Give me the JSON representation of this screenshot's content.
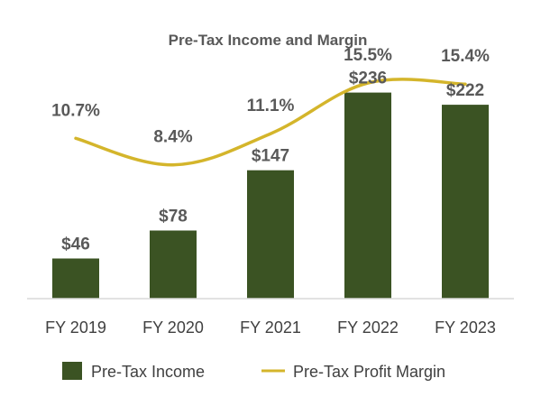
{
  "chart_data": {
    "type": "bar",
    "title": "Pre-Tax Income and Margin",
    "categories": [
      "FY 2019",
      "FY 2020",
      "FY 2021",
      "FY 2022",
      "FY 2023"
    ],
    "series": [
      {
        "name": "Pre-Tax Income",
        "kind": "bar",
        "values": [
          46,
          78,
          147,
          236,
          222
        ],
        "labels": [
          "$46",
          "$78",
          "$147",
          "$236",
          "$222"
        ],
        "color": "#3B5323"
      },
      {
        "name": "Pre-Tax Profit Margin",
        "kind": "line",
        "values": [
          10.7,
          8.4,
          11.1,
          15.5,
          15.4
        ],
        "labels": [
          "10.7%",
          "8.4%",
          "11.1%",
          "15.5%",
          "15.4%"
        ],
        "color": "#D4B52B"
      }
    ],
    "ylim": [
      0,
      280
    ],
    "margin_ylim": [
      -3.2,
      18
    ],
    "legend_position": "bottom",
    "xlabel": "",
    "ylabel": ""
  }
}
